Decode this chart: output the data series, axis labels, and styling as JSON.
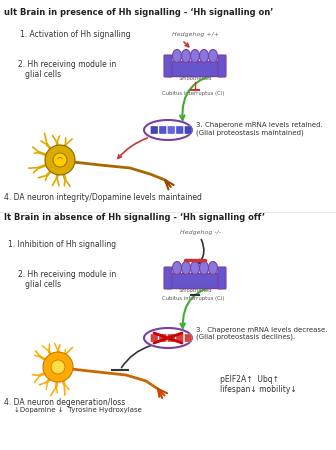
{
  "title1": "ult Brain in presence of Hh signalling - ‘Hh signalling on’",
  "title2": "lt Brain in absence of Hh signalling - ‘Hh signalling off’",
  "bg_color": "#ffffff",
  "panel1": {
    "label1": "1. Activation of Hh signalling",
    "label2": "2. Hh receiving module in\n   glial cells",
    "label3": "3. Chaperone mRNA levels retained.\n(Glial proteostasis maintained)",
    "label4": "4. DA neuron integrity/Dopamine levels maintained",
    "hedgehog_label": "Hedgehog +/+",
    "smoothened_label": "Smoothened",
    "cubitus_label": "Cubitus interruptus (Ci)"
  },
  "panel2": {
    "label1": "1. Inhibition of Hh signalling",
    "label2": "2. Hh receiving module in\n   glial cells",
    "label3": "3.  Chaperone mRNA levels decrease.\n(Glial proteostasis declines).",
    "label4": "4. DA neuron degeneration/loss",
    "label5": "↓Dopamine ↓  Tyrosine Hydroxylase",
    "label6": "pEIF2A↑  Ubq↑\nlifespan↓ mobility↓",
    "hedgehog_label": "Hedgehog -/-",
    "smoothened_label": "Smoothened",
    "cubitus_label": "Cubitus interruptus (Ci)"
  },
  "purple": "#7b3fa0",
  "green": "#44aa33",
  "red": "#cc3333",
  "dark_red": "#aa2222",
  "receptor_body": "#6655cc",
  "receptor_bump": "#8877dd",
  "receptor_outline": "#4433aa",
  "neuron1_body": "#ddaa00",
  "neuron1_nucleus": "#ffcc00",
  "neuron1_dendrite": "#ddaa00",
  "neuron1_axon": "#aa6600",
  "neuron2_body": "#ffaa00",
  "neuron2_nucleus": "#ffdd44",
  "neuron2_dendrite": "#ffaa00",
  "neuron2_axon": "#cc6600"
}
